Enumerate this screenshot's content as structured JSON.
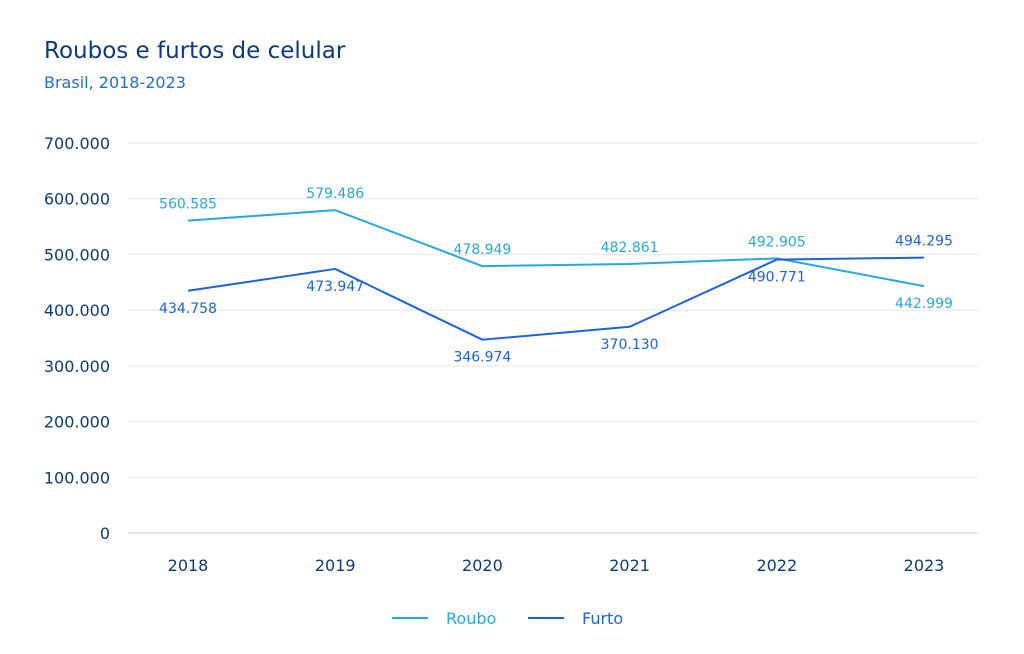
{
  "title": "Roubos e furtos de celular",
  "subtitle": "Brasil, 2018-2023",
  "colors": {
    "roubo": "#29a8e0",
    "furto": "#1e63d6",
    "axis_text": "#0d3a7a",
    "grid": "#e6e6e6"
  },
  "chart_data": {
    "type": "line",
    "title": "Roubos e furtos de celular",
    "subtitle": "Brasil, 2018-2023",
    "x": [
      "2018",
      "2019",
      "2020",
      "2021",
      "2022",
      "2023"
    ],
    "ylim": [
      0,
      700000
    ],
    "yticks": [
      0,
      100000,
      200000,
      300000,
      400000,
      500000,
      600000,
      700000
    ],
    "ytick_labels": [
      "0",
      "100.000",
      "200.000",
      "300.000",
      "400.000",
      "500.000",
      "600.000",
      "700.000"
    ],
    "grid": true,
    "legend_position": "bottom-center",
    "series": [
      {
        "name": "Roubo",
        "color": "#29a8e0",
        "values": [
          560585,
          579486,
          478949,
          482861,
          492905,
          442999
        ],
        "labels": [
          "560.585",
          "579.486",
          "478.949",
          "482.861",
          "492.905",
          "442.999"
        ]
      },
      {
        "name": "Furto",
        "color": "#1e63d6",
        "values": [
          434758,
          473947,
          346974,
          370130,
          490771,
          494295
        ],
        "labels": [
          "434.758",
          "473.947",
          "346.974",
          "370.130",
          "490.771",
          "494.295"
        ]
      }
    ]
  }
}
